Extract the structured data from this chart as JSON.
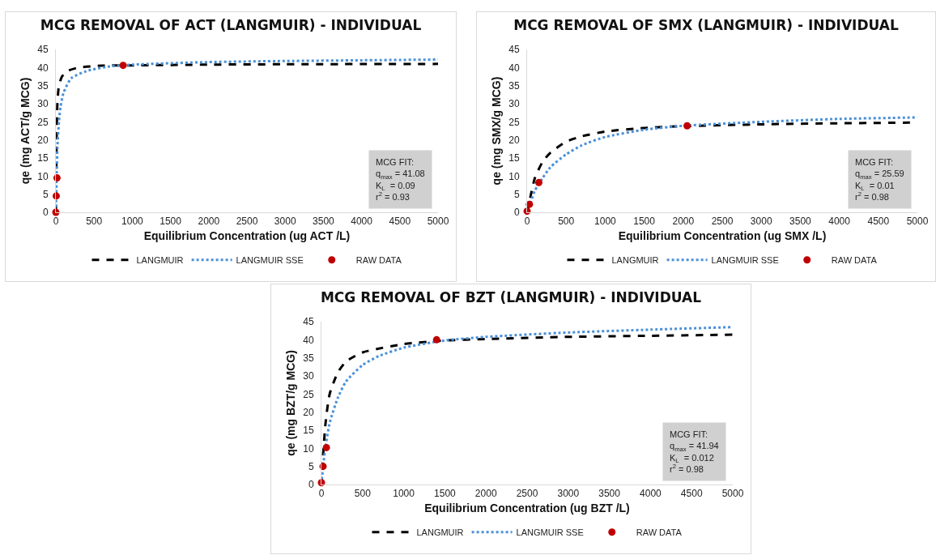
{
  "chart_data": [
    {
      "type": "line",
      "title": "MCG REMOVAL OF ACT (LANGMUIR) - INDIVIDUAL",
      "xlabel": "Equilibrium Concentration (ug ACT /L)",
      "ylabel": "qe (mg ACT/g MCG)",
      "xlim": [
        0,
        5000
      ],
      "xticks": [
        0,
        500,
        1000,
        1500,
        2000,
        2500,
        3000,
        3500,
        4000,
        4500,
        5000
      ],
      "ylim": [
        0,
        45
      ],
      "yticks": [
        0,
        5,
        10,
        15,
        20,
        25,
        30,
        35,
        40,
        45
      ],
      "grid": false,
      "legend": "bottom",
      "annotations": [
        "MCG FIT:\nq$_{max}$ = 41.08\nK$_{L}$  = 0.09\nr$^{2}$ = 0.93"
      ],
      "series": [
        {
          "name": "LANGMUIR",
          "line_style": "dashed",
          "color": "#000000",
          "x": [
            0,
            5,
            10,
            20,
            40,
            80,
            150,
            300,
            600,
            1000,
            2000,
            3000,
            5000
          ],
          "values": [
            0,
            9,
            20,
            30,
            35,
            37.5,
            39,
            40,
            40.5,
            40.6,
            40.8,
            40.9,
            41
          ]
        },
        {
          "name": "LANGMUIR SSE",
          "line_style": "dotted",
          "color": "#4a90d9",
          "x": [
            0,
            10,
            20,
            40,
            60,
            100,
            200,
            400,
            700,
            1000,
            2000,
            3000,
            4000,
            5000
          ],
          "values": [
            0,
            10,
            18,
            25,
            29,
            33,
            37,
            39,
            40.3,
            40.8,
            41.5,
            41.8,
            42,
            42.2
          ]
        },
        {
          "name": "RAW DATA",
          "type": "scatter",
          "marker": "circle",
          "color": "#c00000",
          "x": [
            0,
            5,
            15,
            880
          ],
          "values": [
            0,
            4.5,
            9.5,
            40.6
          ]
        }
      ]
    },
    {
      "type": "line",
      "title": "MCG REMOVAL OF SMX (LANGMUIR) - INDIVIDUAL",
      "xlabel": "Equilibrium Concentration (ug SMX /L)",
      "ylabel": "qe (mg SMX/g MCG)",
      "xlim": [
        0,
        5000
      ],
      "xticks": [
        0,
        500,
        1000,
        1500,
        2000,
        2500,
        3000,
        3500,
        4000,
        4500,
        5000
      ],
      "ylim": [
        0,
        45
      ],
      "yticks": [
        0,
        5,
        10,
        15,
        20,
        25,
        30,
        35,
        40,
        45
      ],
      "grid": false,
      "legend": "bottom",
      "annotations": [
        "MCG FIT:\nq$_{max}$ = 25.59\nK$_{L}$  = 0.01\nr$^{2}$ = 0.98"
      ],
      "series": [
        {
          "name": "LANGMUIR",
          "line_style": "dashed",
          "color": "#000000",
          "x": [
            0,
            50,
            100,
            200,
            300,
            500,
            700,
            1000,
            1500,
            2000,
            3000,
            4000,
            5000
          ],
          "values": [
            0,
            5,
            9.5,
            14,
            16.5,
            19.5,
            21,
            22.3,
            23.3,
            23.8,
            24.3,
            24.6,
            24.8
          ]
        },
        {
          "name": "LANGMUIR SSE",
          "line_style": "dotted",
          "color": "#4a90d9",
          "x": [
            0,
            50,
            100,
            200,
            300,
            500,
            700,
            1000,
            1500,
            2000,
            3000,
            4000,
            5000
          ],
          "values": [
            0,
            3,
            6,
            9.5,
            12.5,
            16,
            18.5,
            20.8,
            22.8,
            23.9,
            25,
            25.8,
            26.2
          ]
        },
        {
          "name": "RAW DATA",
          "type": "scatter",
          "marker": "circle",
          "color": "#c00000",
          "x": [
            0,
            30,
            150,
            2050
          ],
          "values": [
            0.3,
            2.2,
            8.2,
            23.9
          ]
        }
      ]
    },
    {
      "type": "line",
      "title": "MCG REMOVAL OF BZT (LANGMUIR) - INDIVIDUAL",
      "xlabel": "Equilibrium Concentration (ug BZT /L)",
      "ylabel": "qe (mg BZT/g MCG)",
      "xlim": [
        0,
        5000
      ],
      "xticks": [
        0,
        500,
        1000,
        1500,
        2000,
        2500,
        3000,
        3500,
        4000,
        4500,
        5000
      ],
      "ylim": [
        0,
        45
      ],
      "yticks": [
        0,
        5,
        10,
        15,
        20,
        25,
        30,
        35,
        40,
        45
      ],
      "grid": false,
      "legend": "bottom",
      "annotations": [
        "MCG FIT:\nq$_{max}$ = 41.94\nK$_{L}$  = 0.012\nr$^{2}$ = 0.98"
      ],
      "series": [
        {
          "name": "LANGMUIR",
          "line_style": "dashed",
          "color": "#000000",
          "x": [
            0,
            20,
            50,
            100,
            200,
            300,
            500,
            1000,
            1500,
            2000,
            3000,
            4000,
            5000
          ],
          "values": [
            0,
            8,
            17,
            25,
            31,
            34,
            36.5,
            38.8,
            39.8,
            40.2,
            40.8,
            41.1,
            41.4
          ]
        },
        {
          "name": "LANGMUIR SSE",
          "line_style": "dotted",
          "color": "#4a90d9",
          "x": [
            0,
            20,
            50,
            100,
            200,
            300,
            500,
            700,
            1000,
            1500,
            2000,
            3000,
            4000,
            5000
          ],
          "values": [
            0,
            5,
            10.5,
            17,
            24,
            28.5,
            33,
            35.5,
            37.8,
            39.8,
            40.8,
            42,
            42.8,
            43.5
          ]
        },
        {
          "name": "RAW DATA",
          "type": "scatter",
          "marker": "circle",
          "color": "#c00000",
          "x": [
            0,
            20,
            60,
            1400
          ],
          "values": [
            0.5,
            5,
            10.2,
            40
          ]
        }
      ]
    }
  ]
}
